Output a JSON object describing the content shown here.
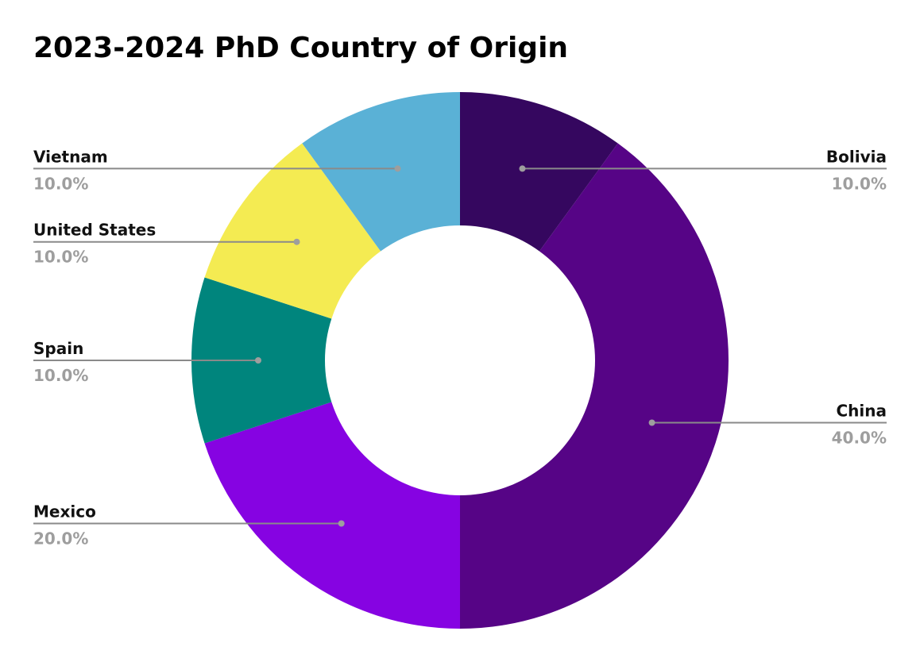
{
  "chart_data": {
    "type": "pie",
    "variant": "donut",
    "title": "2023-2024 PhD Country of Origin",
    "slices": [
      {
        "label": "Bolivia",
        "value": 10.0,
        "display": "10.0%",
        "color": "#35075f"
      },
      {
        "label": "China",
        "value": 40.0,
        "display": "40.0%",
        "color": "#560486"
      },
      {
        "label": "Mexico",
        "value": 20.0,
        "display": "20.0%",
        "color": "#8603e2"
      },
      {
        "label": "Spain",
        "value": 10.0,
        "display": "10.0%",
        "color": "#00857d"
      },
      {
        "label": "United States",
        "value": 10.0,
        "display": "10.0%",
        "color": "#f4eb52"
      },
      {
        "label": "Vietnam",
        "value": 10.0,
        "display": "10.0%",
        "color": "#5ab1d6"
      }
    ],
    "start_angle": "12 o'clock",
    "direction": "clockwise",
    "label_style": "leader lines with name and percentage"
  }
}
